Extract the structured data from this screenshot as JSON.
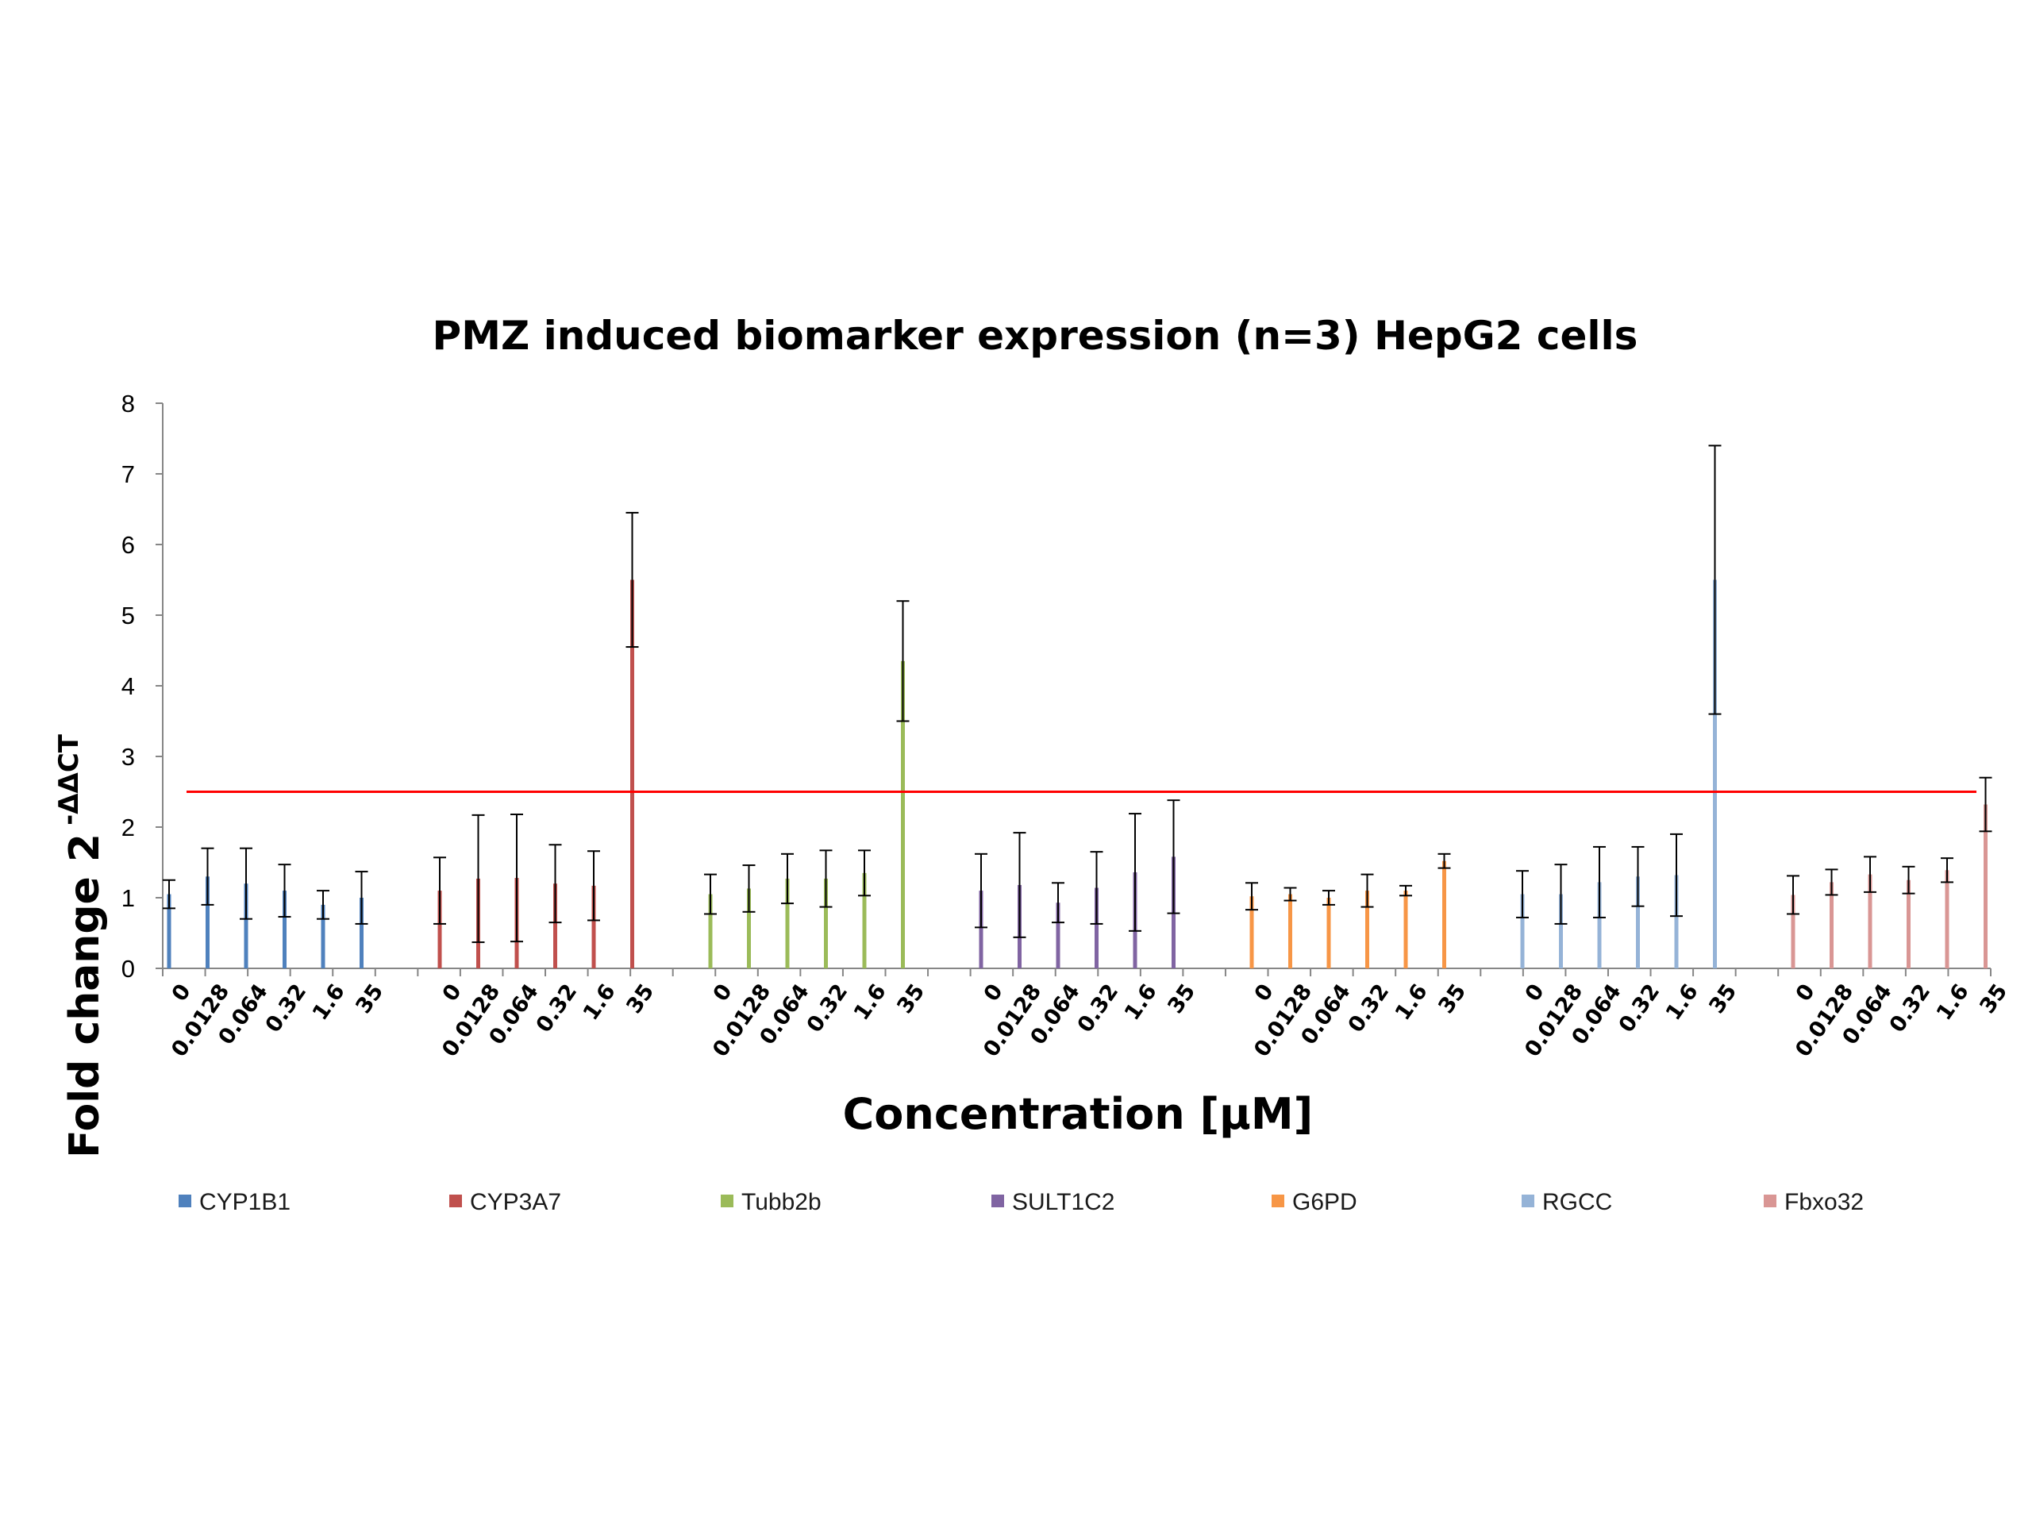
{
  "chart_data": {
    "type": "bar",
    "title": "PMZ induced biomarker expression (n=3) HepG2 cells",
    "xlabel": "Concentration [μM]",
    "ylabel": "Fold change 2",
    "ylabel_superscript": "-ΔΔCT",
    "ylim": [
      0,
      8
    ],
    "yticks": [
      "0",
      "1",
      "2",
      "3",
      "4",
      "5",
      "6",
      "7",
      "8"
    ],
    "legend_position": "bottom",
    "grid": false,
    "categories": [
      "0",
      "0.0128",
      "0.064",
      "0.32",
      "1.6",
      "35"
    ],
    "threshold_line": {
      "value": 2.5,
      "color": "#ff0000"
    },
    "series": [
      {
        "name": "CYP1B1",
        "color": "#4f81bd",
        "values": [
          1.05,
          1.3,
          1.2,
          1.1,
          0.9,
          1.0
        ],
        "errors": [
          0.2,
          0.4,
          0.5,
          0.37,
          0.2,
          0.37
        ]
      },
      {
        "name": "CYP3A7",
        "color": "#c0504d",
        "values": [
          1.1,
          1.27,
          1.28,
          1.2,
          1.17,
          5.5
        ],
        "errors": [
          0.47,
          0.9,
          0.9,
          0.55,
          0.49,
          0.95
        ]
      },
      {
        "name": "Tubb2b",
        "color": "#9bbb59",
        "values": [
          1.05,
          1.13,
          1.27,
          1.27,
          1.35,
          4.35
        ],
        "errors": [
          0.28,
          0.33,
          0.35,
          0.4,
          0.32,
          0.85
        ]
      },
      {
        "name": "SULT1C2",
        "color": "#8064a2",
        "values": [
          1.1,
          1.18,
          0.93,
          1.14,
          1.36,
          1.58
        ],
        "errors": [
          0.52,
          0.74,
          0.28,
          0.51,
          0.83,
          0.8
        ]
      },
      {
        "name": "G6PD",
        "color": "#f79646",
        "values": [
          1.02,
          1.05,
          1.0,
          1.1,
          1.1,
          1.52
        ],
        "errors": [
          0.19,
          0.09,
          0.1,
          0.23,
          0.07,
          0.1
        ]
      },
      {
        "name": "RGCC",
        "color": "#95b3d7",
        "values": [
          1.05,
          1.05,
          1.22,
          1.3,
          1.32,
          5.5
        ],
        "errors": [
          0.33,
          0.42,
          0.5,
          0.42,
          0.58,
          1.9
        ]
      },
      {
        "name": "Fbxo32",
        "color": "#d99694",
        "values": [
          1.04,
          1.22,
          1.33,
          1.25,
          1.39,
          2.32
        ],
        "errors": [
          0.27,
          0.18,
          0.25,
          0.19,
          0.17,
          0.38
        ]
      }
    ]
  }
}
